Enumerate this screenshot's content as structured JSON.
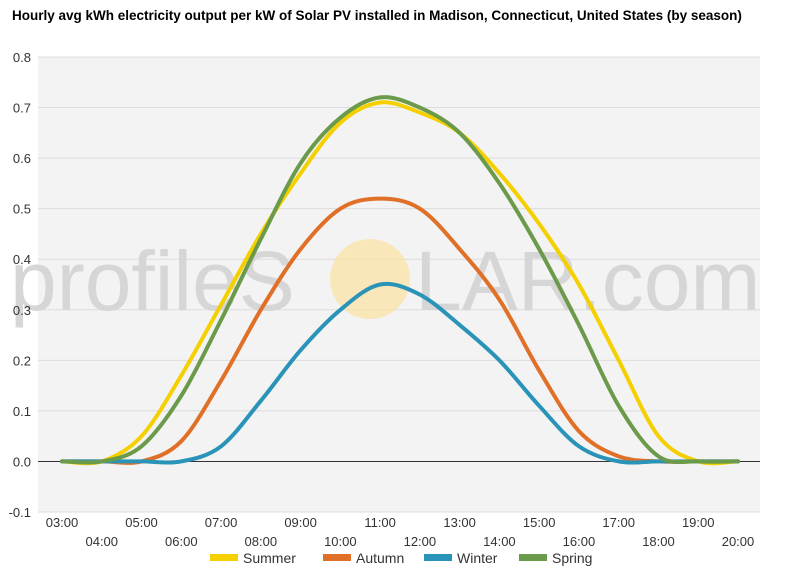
{
  "chart_data": {
    "type": "line",
    "title": "Hourly avg kWh electricity output per kW of Solar PV installed in Madison, Connecticut, United States (by season)",
    "xlabel": "",
    "ylabel": "",
    "x": [
      "03:00",
      "04:00",
      "05:00",
      "06:00",
      "07:00",
      "08:00",
      "09:00",
      "10:00",
      "11:00",
      "12:00",
      "13:00",
      "14:00",
      "15:00",
      "16:00",
      "17:00",
      "18:00",
      "19:00",
      "20:00"
    ],
    "ylim": [
      -0.1,
      0.8
    ],
    "yticks": [
      -0.1,
      0.0,
      0.1,
      0.2,
      0.3,
      0.4,
      0.5,
      0.6,
      0.7,
      0.8
    ],
    "grid": true,
    "legend_position": "bottom",
    "series": [
      {
        "name": "Summer",
        "color": "#f5d000",
        "values": [
          0.0,
          0.0,
          0.05,
          0.17,
          0.31,
          0.45,
          0.57,
          0.67,
          0.71,
          0.69,
          0.65,
          0.57,
          0.47,
          0.35,
          0.2,
          0.05,
          0.0,
          0.0
        ]
      },
      {
        "name": "Autumn",
        "color": "#e07028",
        "values": [
          0.0,
          0.0,
          0.0,
          0.04,
          0.16,
          0.3,
          0.42,
          0.5,
          0.52,
          0.5,
          0.42,
          0.32,
          0.18,
          0.06,
          0.01,
          0.0,
          0.0,
          0.0
        ]
      },
      {
        "name": "Winter",
        "color": "#2a93b8",
        "values": [
          0.0,
          0.0,
          0.0,
          0.0,
          0.03,
          0.12,
          0.22,
          0.3,
          0.35,
          0.33,
          0.27,
          0.2,
          0.11,
          0.03,
          0.0,
          0.0,
          0.0,
          0.0
        ]
      },
      {
        "name": "Spring",
        "color": "#6b9a4b",
        "values": [
          0.0,
          0.0,
          0.03,
          0.13,
          0.28,
          0.44,
          0.59,
          0.68,
          0.72,
          0.7,
          0.65,
          0.55,
          0.42,
          0.27,
          0.11,
          0.01,
          0.0,
          0.0
        ]
      }
    ]
  },
  "watermark": {
    "text_left": "profileS",
    "text_right": "LAR.com",
    "sun_color": "#fbe3a6"
  }
}
